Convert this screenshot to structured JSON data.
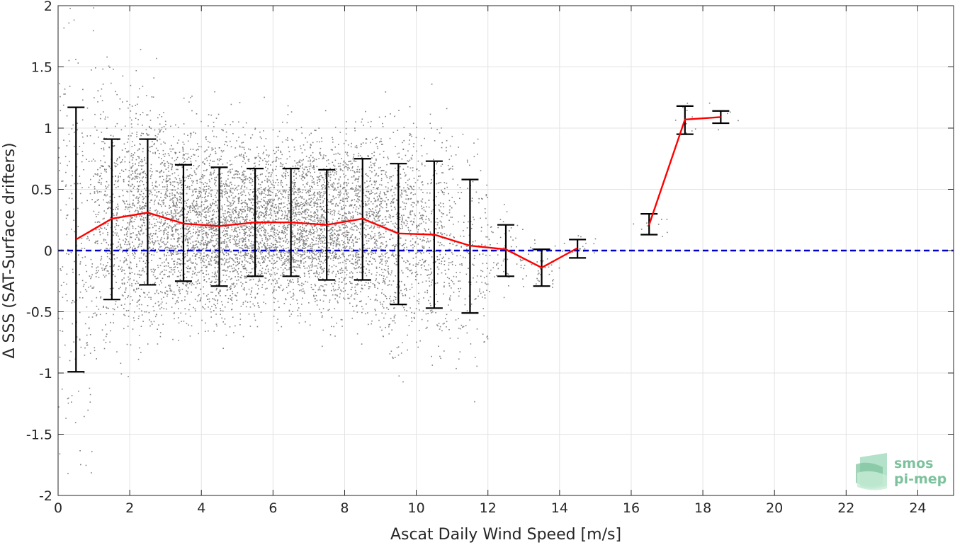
{
  "chart_data": {
    "type": "scatter",
    "xlabel": "Ascat Daily Wind Speed [m/s]",
    "ylabel": "Δ SSS (SAT-Surface drifters)",
    "xlim": [
      0,
      25
    ],
    "ylim": [
      -2,
      2
    ],
    "x_ticks": [
      0,
      2,
      4,
      6,
      8,
      10,
      12,
      14,
      16,
      18,
      20,
      22,
      24
    ],
    "y_ticks": [
      -2,
      -1.5,
      -1,
      -0.5,
      0,
      0.5,
      1,
      1.5,
      2
    ],
    "y_tick_labels": [
      "-2",
      "-1.5",
      "-1",
      "-0.5",
      "0",
      "0.5",
      "1",
      "1.5",
      "2"
    ],
    "grid": true,
    "reference_line": {
      "y": 0,
      "style": "dashed",
      "color": "#0000cc"
    },
    "scatter_color": "#808080",
    "mean_line_color": "#ff0000",
    "errorbar_color": "#000000",
    "scatter_density_by_bin": [
      {
        "x": 0.5,
        "density": 0.25
      },
      {
        "x": 1.5,
        "density": 0.55
      },
      {
        "x": 2.5,
        "density": 0.8
      },
      {
        "x": 3.5,
        "density": 0.95
      },
      {
        "x": 4.5,
        "density": 1.0
      },
      {
        "x": 5.5,
        "density": 1.0
      },
      {
        "x": 6.5,
        "density": 1.0
      },
      {
        "x": 7.5,
        "density": 0.95
      },
      {
        "x": 8.5,
        "density": 0.8
      },
      {
        "x": 9.5,
        "density": 0.6
      },
      {
        "x": 10.5,
        "density": 0.4
      },
      {
        "x": 11.5,
        "density": 0.2
      },
      {
        "x": 12.5,
        "density": 0.08
      },
      {
        "x": 13.5,
        "density": 0.04
      },
      {
        "x": 14.5,
        "density": 0.02
      },
      {
        "x": 16.5,
        "density": 0.01
      },
      {
        "x": 17.5,
        "density": 0.01
      },
      {
        "x": 18.5,
        "density": 0.005
      }
    ],
    "series": [
      {
        "segments": [
          {
            "x": [
              0.5,
              1.5,
              2.5,
              3.5,
              4.5,
              5.5,
              6.5,
              7.5,
              8.5,
              9.5,
              10.5,
              11.5,
              12.5,
              13.5,
              14.5
            ],
            "y": [
              0.09,
              0.26,
              0.31,
              0.22,
              0.2,
              0.23,
              0.23,
              0.21,
              0.26,
              0.14,
              0.13,
              0.04,
              0.01,
              -0.14,
              0.02
            ]
          },
          {
            "x": [
              16.5,
              17.5,
              18.5
            ],
            "y": [
              0.21,
              1.07,
              1.09
            ]
          }
        ],
        "errorbars": [
          {
            "x": 0.5,
            "low": -0.99,
            "high": 1.17
          },
          {
            "x": 1.5,
            "low": -0.4,
            "high": 0.91
          },
          {
            "x": 2.5,
            "low": -0.28,
            "high": 0.91
          },
          {
            "x": 3.5,
            "low": -0.25,
            "high": 0.7
          },
          {
            "x": 4.5,
            "low": -0.29,
            "high": 0.68
          },
          {
            "x": 5.5,
            "low": -0.21,
            "high": 0.67
          },
          {
            "x": 6.5,
            "low": -0.21,
            "high": 0.67
          },
          {
            "x": 7.5,
            "low": -0.24,
            "high": 0.66
          },
          {
            "x": 8.5,
            "low": -0.24,
            "high": 0.75
          },
          {
            "x": 9.5,
            "low": -0.44,
            "high": 0.71
          },
          {
            "x": 10.5,
            "low": -0.47,
            "high": 0.73
          },
          {
            "x": 11.5,
            "low": -0.51,
            "high": 0.58
          },
          {
            "x": 12.5,
            "low": -0.21,
            "high": 0.21
          },
          {
            "x": 13.5,
            "low": -0.29,
            "high": 0.01
          },
          {
            "x": 14.5,
            "low": -0.06,
            "high": 0.09
          },
          {
            "x": 16.5,
            "low": 0.13,
            "high": 0.3
          },
          {
            "x": 17.5,
            "low": 0.95,
            "high": 1.18
          },
          {
            "x": 18.5,
            "low": 1.04,
            "high": 1.14
          }
        ]
      }
    ]
  },
  "logo": {
    "line1": "smos",
    "line2": "pi-mep"
  }
}
